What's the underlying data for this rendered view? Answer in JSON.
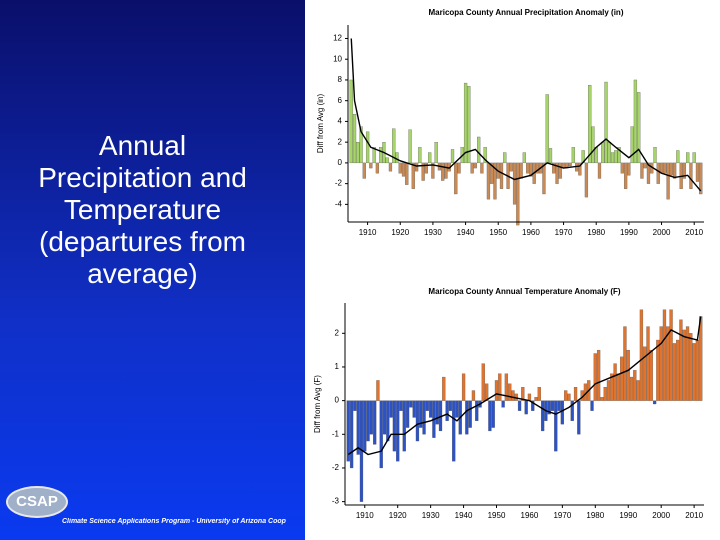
{
  "slide_title": "Annual Precipitation and Temperature (departures from average)",
  "logo": "CSAP",
  "footer": "Climate Science Applications Program - University of Arizona Coop",
  "chart_data": [
    {
      "type": "bar",
      "title": "Maricopa County Annual Precipitation Anomaly (in)",
      "y_label": "Diff from Avg (in)",
      "xlim": [
        1904,
        2013
      ],
      "ylim": [
        -5.7,
        13.3
      ],
      "xticks": [
        1910,
        1920,
        1930,
        1940,
        1950,
        1960,
        1970,
        1980,
        1990,
        2000,
        2010
      ],
      "yticks": [
        -4,
        -2,
        0,
        2,
        4,
        6,
        8,
        10,
        12
      ],
      "x": [
        1905,
        1906,
        1907,
        1908,
        1909,
        1910,
        1911,
        1912,
        1913,
        1914,
        1915,
        1916,
        1917,
        1918,
        1919,
        1920,
        1921,
        1922,
        1923,
        1924,
        1925,
        1926,
        1927,
        1928,
        1929,
        1930,
        1931,
        1932,
        1933,
        1934,
        1935,
        1936,
        1937,
        1938,
        1939,
        1940,
        1941,
        1942,
        1943,
        1944,
        1945,
        1946,
        1947,
        1948,
        1949,
        1950,
        1951,
        1952,
        1953,
        1954,
        1955,
        1956,
        1957,
        1958,
        1959,
        1960,
        1961,
        1962,
        1963,
        1964,
        1965,
        1966,
        1967,
        1968,
        1969,
        1970,
        1971,
        1972,
        1973,
        1974,
        1975,
        1976,
        1977,
        1978,
        1979,
        1980,
        1981,
        1982,
        1983,
        1984,
        1985,
        1986,
        1987,
        1988,
        1989,
        1990,
        1991,
        1992,
        1993,
        1994,
        1995,
        1996,
        1997,
        1998,
        1999,
        2000,
        2001,
        2002,
        2003,
        2004,
        2005,
        2006,
        2007,
        2008,
        2009,
        2010,
        2011,
        2012
      ],
      "values": [
        8,
        4.7,
        2,
        3.5,
        -1.5,
        3,
        -0.5,
        1.5,
        -1,
        1.5,
        2,
        0.5,
        -0.8,
        3.3,
        1,
        -1,
        -1.3,
        -2.1,
        3.2,
        -2.5,
        -0.8,
        1.5,
        -1.7,
        -1,
        1,
        -1.5,
        2,
        -0.7,
        -1.7,
        -1.5,
        -0.8,
        1.3,
        -3,
        -1,
        1.5,
        7.7,
        7.4,
        -1,
        -0.5,
        2.5,
        -1,
        1.5,
        -3.5,
        -2,
        -3.5,
        -1.5,
        -2.5,
        1,
        -2.5,
        -0.8,
        -4,
        -6,
        -1.5,
        1,
        -1,
        -1.3,
        -2,
        -1,
        -1,
        -3,
        6.6,
        1.4,
        -1,
        -2,
        -1.5,
        -0.5,
        -0.5,
        -0.3,
        1.5,
        -0.8,
        -1.2,
        1.2,
        -3.3,
        7.5,
        3.5,
        1.5,
        -1.5,
        2,
        7.8,
        2,
        1,
        1.2,
        1.5,
        -1,
        -2.5,
        -1.2,
        3.5,
        8,
        6.8,
        -1.5,
        -0.5,
        -2,
        -1,
        1.5,
        -2,
        -1,
        -1,
        -3.5,
        -1.2,
        -1.5,
        1.2,
        -2.5,
        -1.5,
        1,
        -2.5,
        1,
        -1.8,
        -3
      ],
      "positive_color": "#a6d36a",
      "negative_color": "#c98a55",
      "line": {
        "color": "#000000",
        "x": [
          1905,
          1906,
          1908,
          1911,
          1915,
          1920,
          1925,
          1930,
          1935,
          1940,
          1943,
          1946,
          1950,
          1955,
          1960,
          1965,
          1970,
          1975,
          1980,
          1983,
          1986,
          1990,
          1993,
          1996,
          2000,
          2004,
          2008,
          2012
        ],
        "values": [
          12,
          6,
          3,
          1.5,
          1,
          0.2,
          -0.3,
          -0.2,
          -0.5,
          1,
          1.3,
          0.3,
          -0.8,
          -1.6,
          -1.2,
          0,
          -0.5,
          -0.3,
          1.5,
          2.3,
          1.5,
          0.5,
          1.3,
          -0.2,
          -1,
          -1.4,
          -1.2,
          -2.7
        ]
      }
    },
    {
      "type": "bar",
      "title": "Maricopa County Annual Temperature Anomaly (F)",
      "y_label": "Diff from Avg (F)",
      "xlim": [
        1904,
        2013
      ],
      "ylim": [
        -3.1,
        2.9
      ],
      "xticks": [
        1910,
        1920,
        1930,
        1940,
        1950,
        1960,
        1970,
        1980,
        1990,
        2000,
        2010
      ],
      "yticks": [
        -3,
        -2,
        -1,
        0,
        1,
        2
      ],
      "x": [
        1905,
        1906,
        1907,
        1908,
        1909,
        1910,
        1911,
        1912,
        1913,
        1914,
        1915,
        1916,
        1917,
        1918,
        1919,
        1920,
        1921,
        1922,
        1923,
        1924,
        1925,
        1926,
        1927,
        1928,
        1929,
        1930,
        1931,
        1932,
        1933,
        1934,
        1935,
        1936,
        1937,
        1938,
        1939,
        1940,
        1941,
        1942,
        1943,
        1944,
        1945,
        1946,
        1947,
        1948,
        1949,
        1950,
        1951,
        1952,
        1953,
        1954,
        1955,
        1956,
        1957,
        1958,
        1959,
        1960,
        1961,
        1962,
        1963,
        1964,
        1965,
        1966,
        1967,
        1968,
        1969,
        1970,
        1971,
        1972,
        1973,
        1974,
        1975,
        1976,
        1977,
        1978,
        1979,
        1980,
        1981,
        1982,
        1983,
        1984,
        1985,
        1986,
        1987,
        1988,
        1989,
        1990,
        1991,
        1992,
        1993,
        1994,
        1995,
        1996,
        1997,
        1998,
        1999,
        2000,
        2001,
        2002,
        2003,
        2004,
        2005,
        2006,
        2007,
        2008,
        2009,
        2010,
        2011,
        2012
      ],
      "values": [
        -1.8,
        -2,
        -0.3,
        -1.6,
        -3,
        -1.5,
        -1.2,
        -1,
        -1.3,
        0.6,
        -2,
        -1,
        -1.2,
        -0.5,
        -1.5,
        -1.8,
        -0.3,
        -1.5,
        -0.8,
        -0.2,
        -0.5,
        -1.2,
        -0.8,
        -1,
        -0.3,
        -0.5,
        -1.1,
        -0.7,
        -0.9,
        0.7,
        -0.6,
        -0.3,
        -1.8,
        -0.5,
        -1,
        0.8,
        -1,
        -0.8,
        0.3,
        -0.6,
        -0.2,
        1.1,
        0.5,
        -0.9,
        -0.8,
        0.6,
        0.8,
        -0.2,
        0.8,
        0.5,
        0.3,
        0.2,
        -0.3,
        0.4,
        -0.4,
        0.2,
        -0.3,
        0.1,
        0.4,
        -0.9,
        -0.6,
        -0.4,
        -0.3,
        -1.5,
        -0.3,
        -0.7,
        0.3,
        0.2,
        -0.6,
        0.4,
        -1,
        0.3,
        0.5,
        0.6,
        -0.3,
        1.4,
        1.5,
        0.1,
        0.4,
        0.6,
        0.8,
        1.1,
        0.8,
        1.3,
        2.2,
        1.5,
        0.7,
        0.9,
        0.6,
        2.7,
        1.6,
        2.2,
        1.5,
        -0.1,
        1.8,
        2.2,
        2.7,
        2.2,
        2.7,
        1.7,
        1.8,
        2.4,
        2.1,
        2.2,
        2,
        1.7,
        1.8,
        2.5
      ],
      "positive_color": "#e0742e",
      "negative_color": "#2c52c4",
      "line": {
        "color": "#000000",
        "x": [
          1905,
          1908,
          1911,
          1915,
          1918,
          1922,
          1926,
          1930,
          1935,
          1938,
          1941,
          1945,
          1950,
          1955,
          1960,
          1965,
          1968,
          1972,
          1976,
          1980,
          1985,
          1990,
          1995,
          2000,
          2003,
          2007,
          2011,
          2012
        ],
        "values": [
          -1.6,
          -1.4,
          -1.6,
          -1.5,
          -1,
          -1,
          -0.7,
          -0.6,
          -0.4,
          -0.6,
          -0.3,
          -0.1,
          0.2,
          0.1,
          0,
          -0.3,
          -0.4,
          -0.2,
          0.1,
          0.5,
          0.7,
          0.9,
          1.3,
          1.7,
          2.1,
          1.9,
          1.8,
          2.5
        ]
      }
    }
  ]
}
